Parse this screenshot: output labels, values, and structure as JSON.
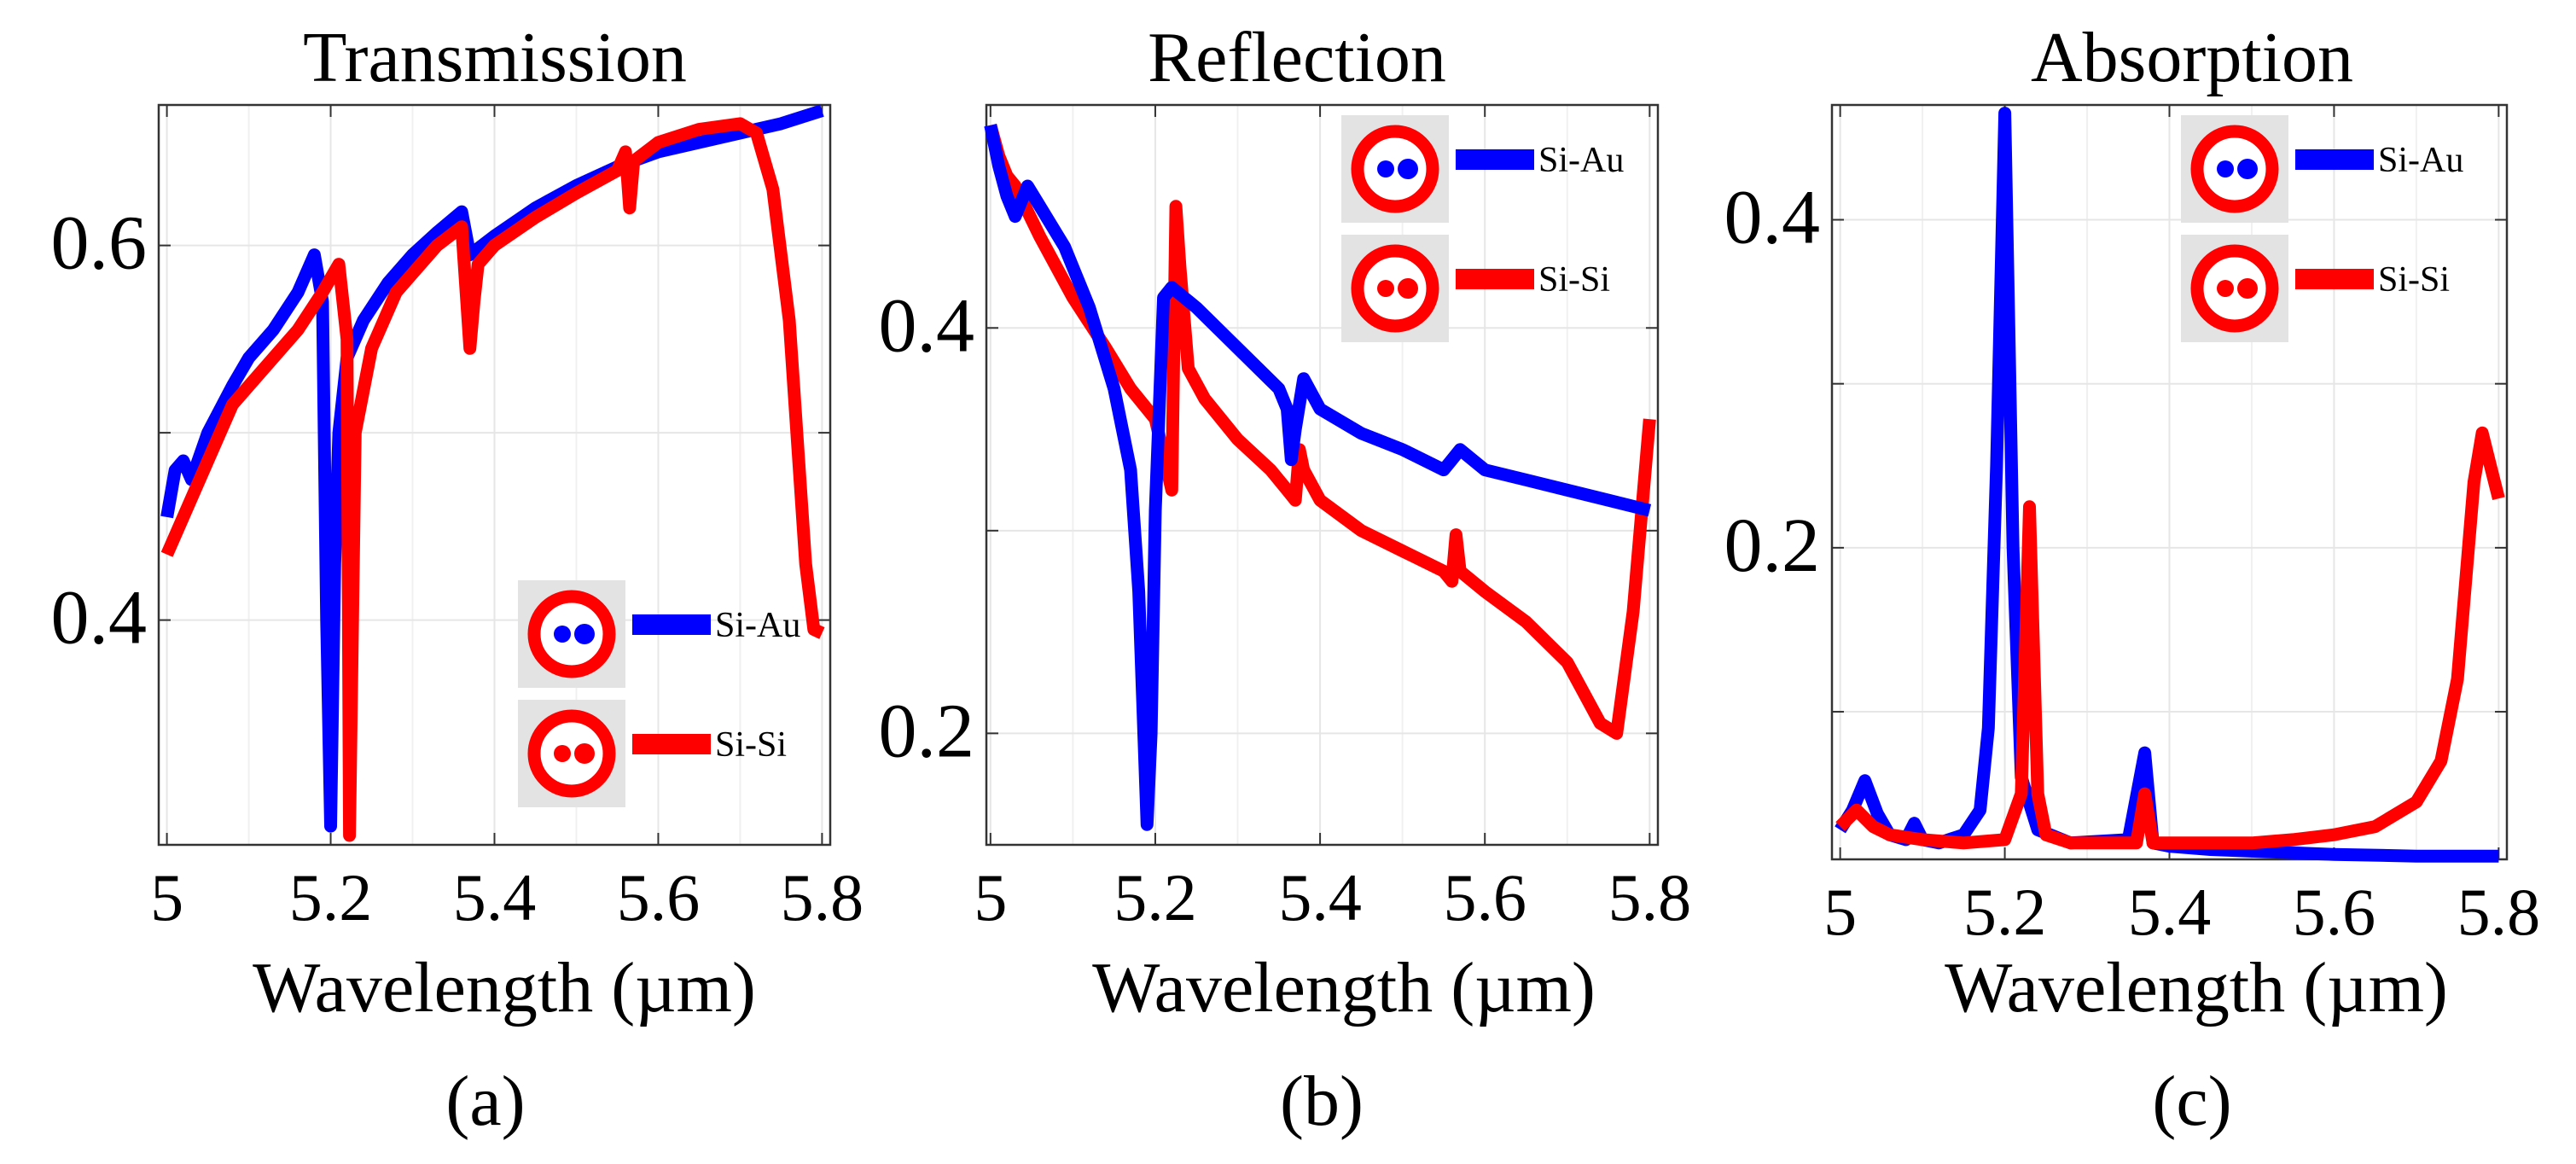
{
  "chart_data": [
    {
      "type": "line",
      "title": "Transmission",
      "xlabel": "Wavelength (µm)",
      "ylabel": "",
      "panel_label": "(a)",
      "xlim": [
        4.99,
        5.81
      ],
      "ylim": [
        0.28,
        0.675
      ],
      "xticks": [
        5,
        5.2,
        5.4,
        5.6,
        5.8
      ],
      "xtick_labels": [
        "5",
        "5.2",
        "5.4",
        "5.6",
        "5.8"
      ],
      "yticks": [
        0.4,
        0.6
      ],
      "ytick_labels": [
        "0.4",
        "0.6"
      ],
      "minor_yticks": [
        0.5
      ],
      "legend_position": "bottom-right",
      "series": [
        {
          "name": "Si-Au",
          "color": "#0000ff",
          "x": [
            5.0,
            5.01,
            5.02,
            5.03,
            5.05,
            5.08,
            5.1,
            5.13,
            5.16,
            5.18,
            5.19,
            5.195,
            5.2,
            5.205,
            5.21,
            5.22,
            5.24,
            5.27,
            5.3,
            5.33,
            5.36,
            5.37,
            5.4,
            5.45,
            5.5,
            5.55,
            5.6,
            5.65,
            5.7,
            5.75,
            5.8
          ],
          "y": [
            0.455,
            0.48,
            0.485,
            0.475,
            0.5,
            0.525,
            0.54,
            0.555,
            0.575,
            0.595,
            0.57,
            0.4,
            0.29,
            0.43,
            0.5,
            0.54,
            0.56,
            0.58,
            0.595,
            0.607,
            0.618,
            0.595,
            0.605,
            0.62,
            0.632,
            0.642,
            0.65,
            0.655,
            0.66,
            0.665,
            0.672
          ]
        },
        {
          "name": "Si-Si",
          "color": "#ff0000",
          "x": [
            5.0,
            5.02,
            5.05,
            5.08,
            5.1,
            5.13,
            5.16,
            5.19,
            5.21,
            5.22,
            5.223,
            5.23,
            5.25,
            5.28,
            5.3,
            5.33,
            5.36,
            5.37,
            5.375,
            5.38,
            5.4,
            5.45,
            5.5,
            5.55,
            5.56,
            5.565,
            5.57,
            5.6,
            5.65,
            5.7,
            5.72,
            5.74,
            5.76,
            5.78,
            5.79,
            5.8
          ],
          "y": [
            0.435,
            0.455,
            0.485,
            0.515,
            0.525,
            0.54,
            0.555,
            0.575,
            0.59,
            0.55,
            0.285,
            0.5,
            0.545,
            0.575,
            0.585,
            0.6,
            0.61,
            0.545,
            0.57,
            0.59,
            0.6,
            0.615,
            0.628,
            0.64,
            0.65,
            0.62,
            0.645,
            0.655,
            0.662,
            0.665,
            0.66,
            0.63,
            0.56,
            0.43,
            0.395,
            0.393
          ]
        }
      ]
    },
    {
      "type": "line",
      "title": "Reflection",
      "xlabel": "Wavelength (µm)",
      "ylabel": "",
      "panel_label": "(b)",
      "xlim": [
        4.995,
        5.81
      ],
      "ylim": [
        0.145,
        0.51
      ],
      "xticks": [
        5,
        5.2,
        5.4,
        5.6,
        5.8
      ],
      "xtick_labels": [
        "5",
        "5.2",
        "5.4",
        "5.6",
        "5.8"
      ],
      "yticks": [
        0.2,
        0.4
      ],
      "ytick_labels": [
        "0.2",
        "0.4"
      ],
      "minor_yticks": [
        0.3
      ],
      "legend_position": "top-right",
      "series": [
        {
          "name": "Si-Au",
          "color": "#0000ff",
          "x": [
            5.0,
            5.01,
            5.02,
            5.03,
            5.045,
            5.06,
            5.09,
            5.12,
            5.15,
            5.17,
            5.18,
            5.19,
            5.195,
            5.2,
            5.21,
            5.22,
            5.25,
            5.3,
            5.35,
            5.36,
            5.365,
            5.37,
            5.38,
            5.4,
            5.45,
            5.5,
            5.55,
            5.56,
            5.57,
            5.6,
            5.65,
            5.7,
            5.75,
            5.8
          ],
          "y": [
            0.5,
            0.48,
            0.465,
            0.455,
            0.47,
            0.46,
            0.44,
            0.41,
            0.37,
            0.33,
            0.27,
            0.155,
            0.2,
            0.31,
            0.415,
            0.42,
            0.41,
            0.39,
            0.37,
            0.36,
            0.335,
            0.35,
            0.375,
            0.36,
            0.348,
            0.34,
            0.33,
            0.335,
            0.34,
            0.33,
            0.325,
            0.32,
            0.315,
            0.31
          ]
        },
        {
          "name": "Si-Si",
          "color": "#ff0000",
          "x": [
            5.0,
            5.01,
            5.02,
            5.03,
            5.06,
            5.1,
            5.14,
            5.17,
            5.2,
            5.22,
            5.225,
            5.23,
            5.24,
            5.26,
            5.3,
            5.34,
            5.36,
            5.37,
            5.375,
            5.38,
            5.4,
            5.45,
            5.5,
            5.55,
            5.56,
            5.565,
            5.57,
            5.6,
            5.65,
            5.7,
            5.72,
            5.74,
            5.76,
            5.78,
            5.8
          ],
          "y": [
            0.5,
            0.485,
            0.475,
            0.47,
            0.445,
            0.415,
            0.39,
            0.37,
            0.355,
            0.32,
            0.46,
            0.43,
            0.38,
            0.365,
            0.345,
            0.33,
            0.32,
            0.315,
            0.34,
            0.33,
            0.315,
            0.3,
            0.29,
            0.28,
            0.275,
            0.298,
            0.28,
            0.27,
            0.255,
            0.235,
            0.22,
            0.205,
            0.2,
            0.26,
            0.355
          ]
        }
      ]
    },
    {
      "type": "line",
      "title": "Absorption",
      "xlabel": "Wavelength (µm)",
      "ylabel": "",
      "panel_label": "(c)",
      "xlim": [
        4.99,
        5.81
      ],
      "ylim": [
        0.01,
        0.47
      ],
      "xticks": [
        5,
        5.2,
        5.4,
        5.6,
        5.8
      ],
      "xtick_labels": [
        "5",
        "5.2",
        "5.4",
        "5.6",
        "5.8"
      ],
      "yticks": [
        0.2,
        0.4
      ],
      "ytick_labels": [
        "0.2",
        "0.4"
      ],
      "minor_yticks": [
        0.1,
        0.3
      ],
      "legend_position": "top-right",
      "series": [
        {
          "name": "Si-Au",
          "color": "#0000ff",
          "x": [
            5.0,
            5.015,
            5.03,
            5.045,
            5.06,
            5.08,
            5.09,
            5.1,
            5.12,
            5.15,
            5.17,
            5.18,
            5.19,
            5.2,
            5.21,
            5.22,
            5.24,
            5.28,
            5.35,
            5.37,
            5.38,
            5.4,
            5.45,
            5.5,
            5.6,
            5.7,
            5.8
          ],
          "y": [
            0.028,
            0.04,
            0.058,
            0.038,
            0.025,
            0.022,
            0.032,
            0.022,
            0.02,
            0.025,
            0.04,
            0.09,
            0.25,
            0.465,
            0.2,
            0.06,
            0.028,
            0.02,
            0.022,
            0.075,
            0.02,
            0.018,
            0.016,
            0.015,
            0.013,
            0.012,
            0.012
          ]
        },
        {
          "name": "Si-Si",
          "color": "#ff0000",
          "x": [
            5.0,
            5.02,
            5.04,
            5.06,
            5.1,
            5.15,
            5.2,
            5.22,
            5.23,
            5.24,
            5.25,
            5.28,
            5.32,
            5.36,
            5.37,
            5.38,
            5.4,
            5.45,
            5.5,
            5.55,
            5.6,
            5.65,
            5.7,
            5.73,
            5.75,
            5.77,
            5.78,
            5.79,
            5.8
          ],
          "y": [
            0.03,
            0.04,
            0.03,
            0.025,
            0.022,
            0.02,
            0.022,
            0.05,
            0.225,
            0.05,
            0.025,
            0.02,
            0.02,
            0.02,
            0.05,
            0.02,
            0.02,
            0.02,
            0.02,
            0.022,
            0.025,
            0.03,
            0.045,
            0.07,
            0.12,
            0.24,
            0.27,
            0.25,
            0.23
          ]
        }
      ]
    }
  ]
}
